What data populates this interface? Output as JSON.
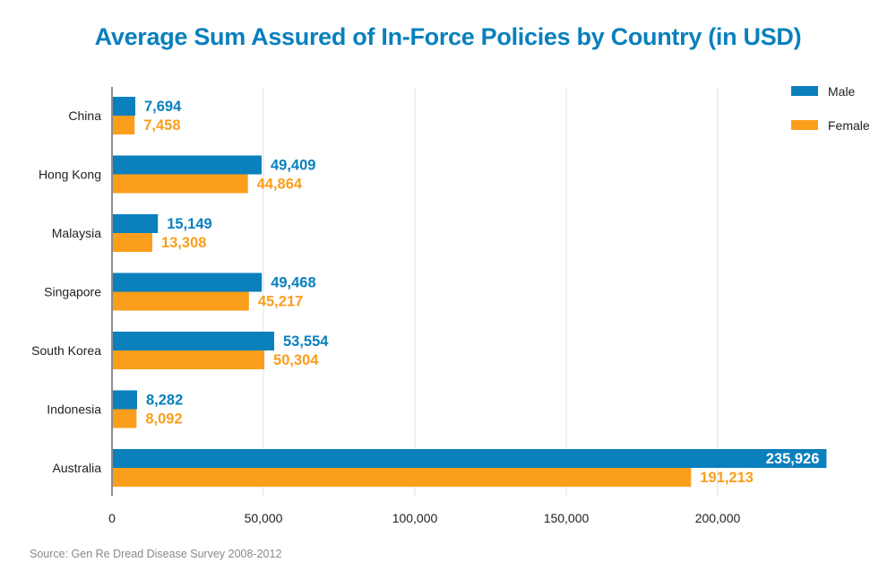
{
  "chart_data": {
    "type": "bar",
    "orientation": "horizontal",
    "title": "Average Sum Assured of In-Force Policies by Country (in USD)",
    "categories": [
      "China",
      "Hong Kong",
      "Malaysia",
      "Singapore",
      "South Korea",
      "Indonesia",
      "Australia"
    ],
    "series": [
      {
        "name": "Male",
        "color": "#0a80bd",
        "values": [
          7694,
          49409,
          15149,
          49468,
          53554,
          8282,
          235926
        ],
        "labels": [
          "7,694",
          "49,409",
          "15,149",
          "49,468",
          "53,554",
          "8,282",
          "235,926"
        ]
      },
      {
        "name": "Female",
        "color": "#fa9e1c",
        "values": [
          7458,
          44864,
          13308,
          45217,
          50304,
          8092,
          191213
        ],
        "labels": [
          "7,458",
          "44,864",
          "13,308",
          "45,217",
          "50,304",
          "8,092",
          "191,213"
        ]
      }
    ],
    "xticks": [
      0,
      50000,
      100000,
      150000,
      200000
    ],
    "xtick_labels": [
      "0",
      "50,000",
      "100,000",
      "150,000",
      "200,000"
    ],
    "xlim": [
      0,
      236000
    ],
    "xlabel": "",
    "ylabel": "",
    "grid": true,
    "legend": {
      "position": "top-right",
      "entries": [
        "Male",
        "Female"
      ]
    },
    "source": "Source: Gen Re Dread Disease Survey 2008-2012"
  }
}
